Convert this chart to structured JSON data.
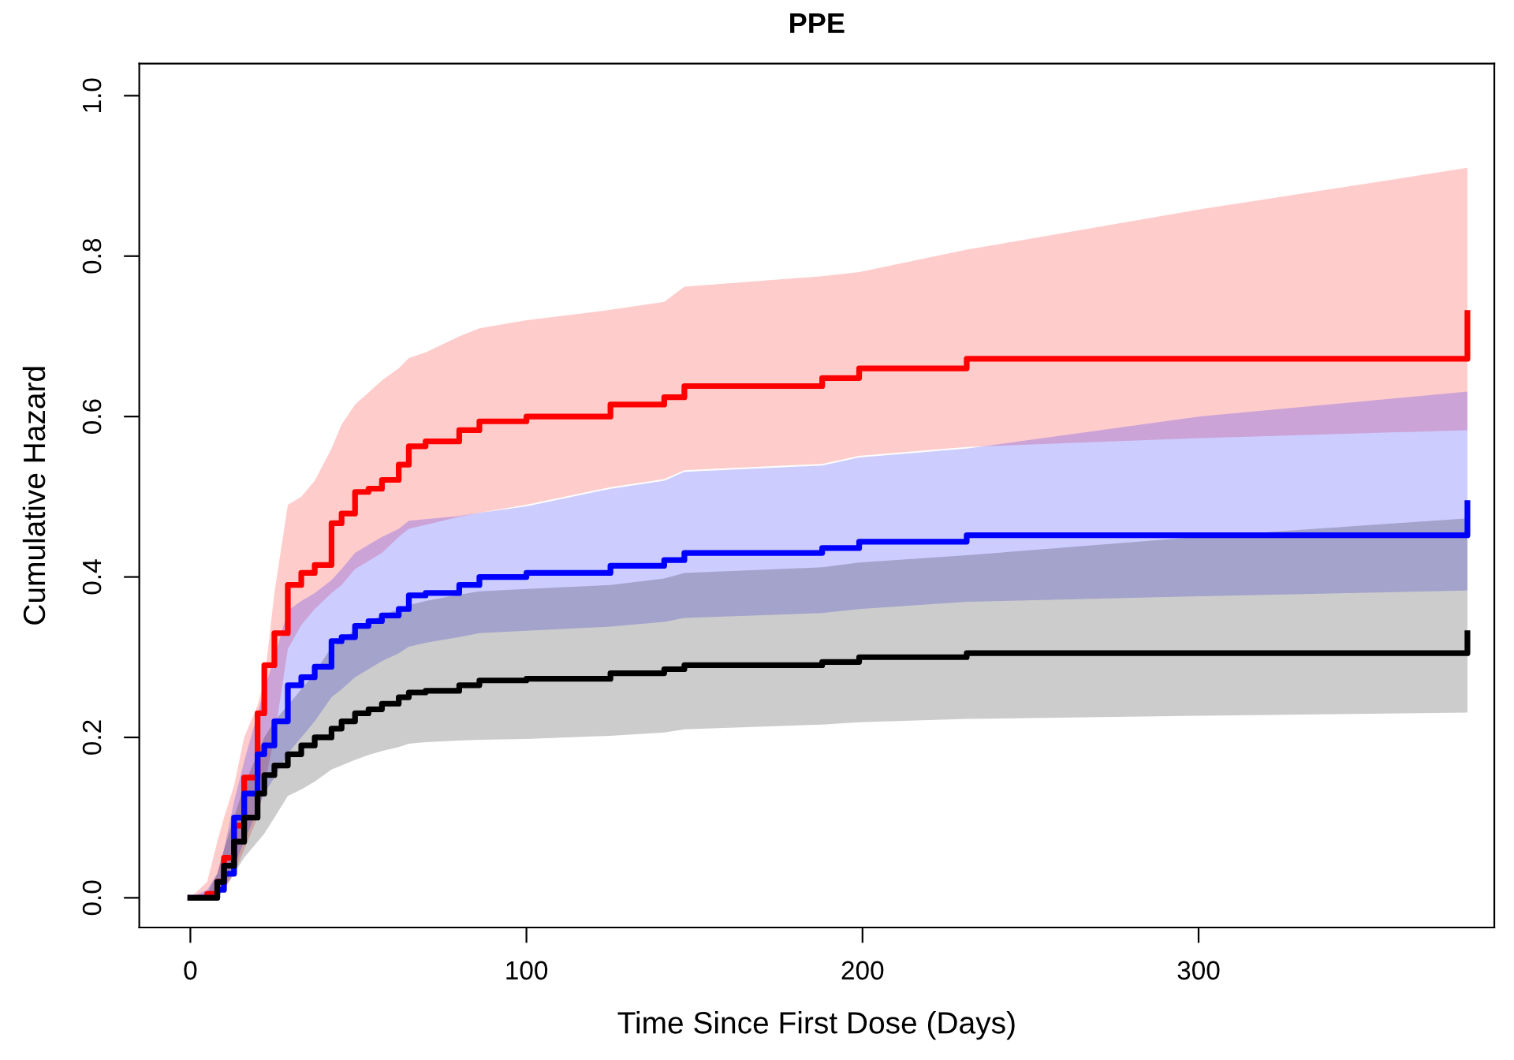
{
  "chart_data": {
    "type": "step",
    "title": "PPE",
    "xlabel": "Time Since First Dose (Days)",
    "ylabel": "Cumulative Hazard",
    "x": [
      0,
      5,
      8,
      10,
      13,
      16,
      20,
      22,
      25,
      29,
      33,
      37,
      42,
      45,
      49,
      53,
      57,
      62,
      65,
      70,
      80,
      86,
      100,
      125,
      141,
      147,
      188,
      199,
      231,
      300,
      380
    ],
    "series": [
      {
        "color": "#ff0000",
        "values": [
          0,
          0.005,
          0.02,
          0.05,
          0.09,
          0.15,
          0.23,
          0.29,
          0.33,
          0.39,
          0.405,
          0.415,
          0.467,
          0.479,
          0.506,
          0.51,
          0.521,
          0.54,
          0.563,
          0.569,
          0.583,
          0.594,
          0.6,
          0.615,
          0.624,
          0.638,
          0.648,
          0.66,
          0.672,
          0.672,
          0.729
        ],
        "lower": [
          0,
          0,
          0.005,
          0.01,
          0.03,
          0.06,
          0.1,
          0.14,
          0.2,
          0.31,
          0.34,
          0.36,
          0.38,
          0.39,
          0.41,
          0.42,
          0.43,
          0.45,
          0.46,
          0.465,
          0.475,
          0.48,
          0.49,
          0.512,
          0.522,
          0.533,
          0.541,
          0.551,
          0.562,
          0.573,
          0.583
        ],
        "upper": [
          0,
          0.02,
          0.07,
          0.1,
          0.14,
          0.2,
          0.24,
          0.27,
          0.38,
          0.49,
          0.5,
          0.52,
          0.56,
          0.59,
          0.615,
          0.63,
          0.645,
          0.66,
          0.673,
          0.68,
          0.7,
          0.71,
          0.72,
          0.733,
          0.743,
          0.762,
          0.775,
          0.78,
          0.808,
          0.858,
          0.91
        ]
      },
      {
        "color": "#0000ff",
        "values": [
          0,
          0,
          0.01,
          0.03,
          0.1,
          0.13,
          0.179,
          0.19,
          0.22,
          0.265,
          0.275,
          0.288,
          0.32,
          0.325,
          0.339,
          0.345,
          0.352,
          0.36,
          0.377,
          0.38,
          0.39,
          0.4,
          0.405,
          0.414,
          0.421,
          0.43,
          0.436,
          0.444,
          0.452,
          0.452,
          0.492
        ],
        "lower": [
          0,
          0,
          0,
          0.01,
          0.04,
          0.07,
          0.11,
          0.13,
          0.15,
          0.18,
          0.2,
          0.22,
          0.25,
          0.26,
          0.275,
          0.285,
          0.295,
          0.305,
          0.313,
          0.318,
          0.325,
          0.33,
          0.333,
          0.338,
          0.344,
          0.349,
          0.355,
          0.36,
          0.369,
          0.376,
          0.383
        ],
        "upper": [
          0,
          0.01,
          0.03,
          0.06,
          0.12,
          0.17,
          0.23,
          0.26,
          0.3,
          0.358,
          0.37,
          0.38,
          0.396,
          0.41,
          0.43,
          0.44,
          0.45,
          0.46,
          0.47,
          0.472,
          0.476,
          0.48,
          0.488,
          0.51,
          0.52,
          0.531,
          0.539,
          0.549,
          0.56,
          0.6,
          0.631
        ]
      },
      {
        "color": "#000000",
        "values": [
          0,
          0,
          0.02,
          0.04,
          0.07,
          0.1,
          0.13,
          0.153,
          0.165,
          0.179,
          0.19,
          0.2,
          0.211,
          0.22,
          0.23,
          0.235,
          0.242,
          0.25,
          0.256,
          0.258,
          0.265,
          0.271,
          0.273,
          0.28,
          0.285,
          0.29,
          0.294,
          0.3,
          0.305,
          0.305,
          0.33
        ],
        "lower": [
          0,
          0,
          0.005,
          0.01,
          0.03,
          0.05,
          0.07,
          0.08,
          0.1,
          0.127,
          0.135,
          0.145,
          0.16,
          0.165,
          0.172,
          0.178,
          0.183,
          0.188,
          0.192,
          0.194,
          0.196,
          0.197,
          0.198,
          0.202,
          0.206,
          0.21,
          0.216,
          0.219,
          0.223,
          0.227,
          0.231
        ],
        "upper": [
          0,
          0.005,
          0.03,
          0.06,
          0.1,
          0.14,
          0.18,
          0.2,
          0.22,
          0.24,
          0.26,
          0.28,
          0.313,
          0.32,
          0.335,
          0.345,
          0.352,
          0.36,
          0.365,
          0.37,
          0.378,
          0.382,
          0.385,
          0.39,
          0.398,
          0.405,
          0.412,
          0.418,
          0.427,
          0.45,
          0.473
        ]
      }
    ],
    "xlim": [
      -15.2,
      388
    ],
    "ylim": [
      -0.037,
      1.04
    ],
    "xticks": [
      0,
      100,
      200,
      300
    ],
    "yticks": [
      {
        "value": 0,
        "label": "0.0"
      },
      {
        "value": 0.2,
        "label": "0.2"
      },
      {
        "value": 0.4,
        "label": "0.4"
      },
      {
        "value": 0.6,
        "label": "0.6"
      },
      {
        "value": 0.8,
        "label": "0.8"
      },
      {
        "value": 1.0,
        "label": "1.0"
      }
    ],
    "grid": false
  }
}
